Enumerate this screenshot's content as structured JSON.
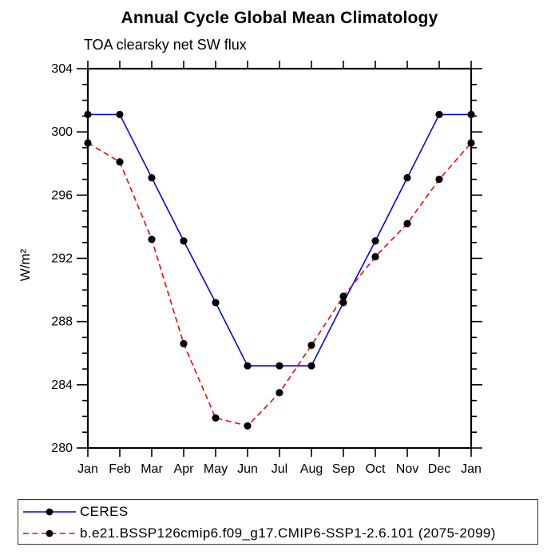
{
  "chart_data": {
    "type": "line",
    "title": "Annual Cycle Global Mean Climatology",
    "subtitle": "TOA clearsky net SW flux",
    "ylabel": "W/m²",
    "categories": [
      "Jan",
      "Feb",
      "Mar",
      "Apr",
      "May",
      "Jun",
      "Jul",
      "Aug",
      "Sep",
      "Oct",
      "Nov",
      "Dec",
      "Jan"
    ],
    "ylim": [
      280,
      304
    ],
    "y_major_step": 4,
    "y_minor_step": 1,
    "y_major_tick_labels": [
      "280",
      "284",
      "288",
      "292",
      "296",
      "300",
      "304"
    ],
    "grid": false,
    "legend_position": "bottom",
    "series": [
      {
        "name": "CERES",
        "color": "#0000ff",
        "line_style": "solid",
        "marker": "filled-circle",
        "marker_color": "#000000",
        "values": [
          301.1,
          301.1,
          297.1,
          293.1,
          289.2,
          285.2,
          285.2,
          285.2,
          289.2,
          293.1,
          297.1,
          301.1,
          301.1
        ]
      },
      {
        "name": "b.e21.BSSP126cmip6.f09_g17.CMIP6-SSP1-2.6.101 (2075-2099)",
        "color": "#ff0000",
        "line_style": "dashed",
        "marker": "filled-circle",
        "marker_color": "#000000",
        "values": [
          299.3,
          298.1,
          293.2,
          286.6,
          281.9,
          281.4,
          283.5,
          286.5,
          289.6,
          292.1,
          294.2,
          297.0,
          299.3
        ]
      }
    ]
  }
}
